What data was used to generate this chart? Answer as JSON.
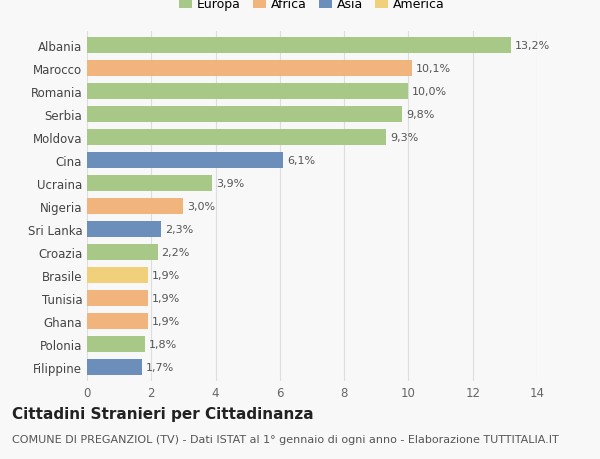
{
  "categories": [
    "Albania",
    "Marocco",
    "Romania",
    "Serbia",
    "Moldova",
    "Cina",
    "Ucraina",
    "Nigeria",
    "Sri Lanka",
    "Croazia",
    "Brasile",
    "Tunisia",
    "Ghana",
    "Polonia",
    "Filippine"
  ],
  "values": [
    13.2,
    10.1,
    10.0,
    9.8,
    9.3,
    6.1,
    3.9,
    3.0,
    2.3,
    2.2,
    1.9,
    1.9,
    1.9,
    1.8,
    1.7
  ],
  "labels": [
    "13,2%",
    "10,1%",
    "10,0%",
    "9,8%",
    "9,3%",
    "6,1%",
    "3,9%",
    "3,0%",
    "2,3%",
    "2,2%",
    "1,9%",
    "1,9%",
    "1,9%",
    "1,8%",
    "1,7%"
  ],
  "continents": [
    "Europa",
    "Africa",
    "Europa",
    "Europa",
    "Europa",
    "Asia",
    "Europa",
    "Africa",
    "Asia",
    "Europa",
    "America",
    "Africa",
    "Africa",
    "Europa",
    "Asia"
  ],
  "colors": {
    "Europa": "#a8c887",
    "Africa": "#f0b47c",
    "Asia": "#6b8eba",
    "America": "#f0d07a"
  },
  "legend_order": [
    "Europa",
    "Africa",
    "Asia",
    "America"
  ],
  "title": "Cittadini Stranieri per Cittadinanza",
  "subtitle": "COMUNE DI PREGANZIOL (TV) - Dati ISTAT al 1° gennaio di ogni anno - Elaborazione TUTTITALIA.IT",
  "xlim": [
    0,
    14
  ],
  "xticks": [
    0,
    2,
    4,
    6,
    8,
    10,
    12,
    14
  ],
  "background_color": "#f8f8f8",
  "grid_color": "#dddddd",
  "title_fontsize": 11,
  "subtitle_fontsize": 8,
  "label_fontsize": 8,
  "ytick_fontsize": 8.5,
  "xtick_fontsize": 8.5,
  "legend_fontsize": 9
}
